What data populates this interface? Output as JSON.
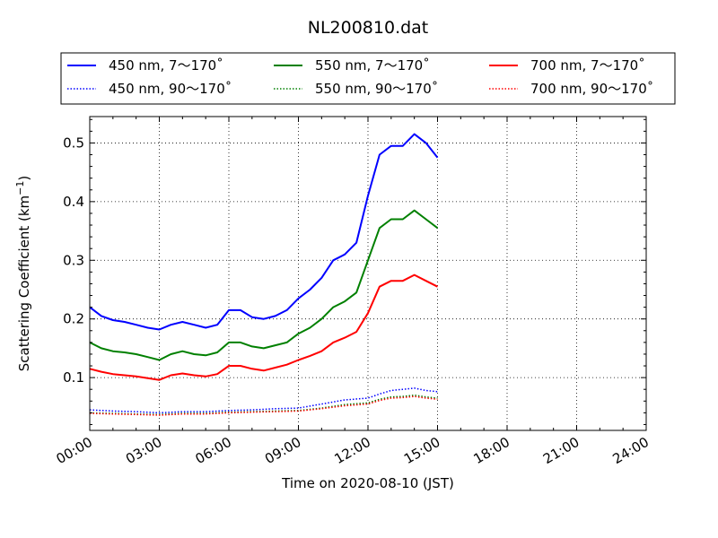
{
  "chart_data": {
    "type": "line",
    "title": "NL200810.dat",
    "xlabel": "Time on 2020-08-10 (JST)",
    "ylabel_main": "Scattering Coefficient (km",
    "ylabel_sup": "−1",
    "ylabel_close": ")",
    "xlim": [
      "00:00",
      "24:00"
    ],
    "ylim": [
      0.01,
      0.545
    ],
    "grid": true,
    "legend_position": "top",
    "x_ticks": [
      "00:00",
      "03:00",
      "06:00",
      "09:00",
      "12:00",
      "15:00",
      "18:00",
      "21:00",
      "24:00"
    ],
    "y_ticks": [
      "0.1",
      "0.2",
      "0.3",
      "0.4",
      "0.5"
    ],
    "series": [
      {
        "name": "450 nm, 7～170˚",
        "color": "#0000ff",
        "style": "solid",
        "x": [
          "00:00",
          "00:30",
          "01:00",
          "01:30",
          "02:00",
          "02:30",
          "03:00",
          "03:30",
          "04:00",
          "04:30",
          "05:00",
          "05:30",
          "06:00",
          "06:30",
          "07:00",
          "07:30",
          "08:00",
          "08:30",
          "09:00",
          "09:30",
          "10:00",
          "10:30",
          "11:00",
          "11:30",
          "12:00",
          "12:30",
          "13:00",
          "13:30",
          "14:00",
          "14:30",
          "15:00"
        ],
        "y": [
          0.22,
          0.205,
          0.198,
          0.195,
          0.19,
          0.185,
          0.182,
          0.19,
          0.195,
          0.19,
          0.185,
          0.19,
          0.215,
          0.215,
          0.203,
          0.2,
          0.205,
          0.215,
          0.235,
          0.25,
          0.27,
          0.3,
          0.31,
          0.33,
          0.41,
          0.48,
          0.495,
          0.495,
          0.515,
          0.5,
          0.475
        ]
      },
      {
        "name": "550 nm, 7～170˚",
        "color": "#008000",
        "style": "solid",
        "x": [
          "00:00",
          "00:30",
          "01:00",
          "01:30",
          "02:00",
          "02:30",
          "03:00",
          "03:30",
          "04:00",
          "04:30",
          "05:00",
          "05:30",
          "06:00",
          "06:30",
          "07:00",
          "07:30",
          "08:00",
          "08:30",
          "09:00",
          "09:30",
          "10:00",
          "10:30",
          "11:00",
          "11:30",
          "12:00",
          "12:30",
          "13:00",
          "13:30",
          "14:00",
          "14:30",
          "15:00"
        ],
        "y": [
          0.16,
          0.15,
          0.145,
          0.143,
          0.14,
          0.135,
          0.13,
          0.14,
          0.145,
          0.14,
          0.138,
          0.143,
          0.16,
          0.16,
          0.153,
          0.15,
          0.155,
          0.16,
          0.175,
          0.185,
          0.2,
          0.22,
          0.23,
          0.245,
          0.3,
          0.355,
          0.37,
          0.37,
          0.385,
          0.37,
          0.355
        ]
      },
      {
        "name": "700 nm, 7～170˚",
        "color": "#ff0000",
        "style": "solid",
        "x": [
          "00:00",
          "00:30",
          "01:00",
          "01:30",
          "02:00",
          "02:30",
          "03:00",
          "03:30",
          "04:00",
          "04:30",
          "05:00",
          "05:30",
          "06:00",
          "06:30",
          "07:00",
          "07:30",
          "08:00",
          "08:30",
          "09:00",
          "09:30",
          "10:00",
          "10:30",
          "11:00",
          "11:30",
          "12:00",
          "12:30",
          "13:00",
          "13:30",
          "14:00",
          "14:30",
          "15:00"
        ],
        "y": [
          0.115,
          0.11,
          0.106,
          0.104,
          0.102,
          0.099,
          0.096,
          0.104,
          0.107,
          0.104,
          0.102,
          0.106,
          0.12,
          0.12,
          0.115,
          0.112,
          0.117,
          0.122,
          0.13,
          0.137,
          0.145,
          0.16,
          0.168,
          0.178,
          0.21,
          0.255,
          0.265,
          0.265,
          0.275,
          0.265,
          0.255
        ]
      },
      {
        "name": "450 nm, 90～170˚",
        "color": "#0000ff",
        "style": "dotted",
        "x": [
          "00:00",
          "01:00",
          "02:00",
          "03:00",
          "04:00",
          "05:00",
          "06:00",
          "07:00",
          "08:00",
          "09:00",
          "10:00",
          "11:00",
          "12:00",
          "12:30",
          "13:00",
          "13:30",
          "14:00",
          "14:30",
          "15:00"
        ],
        "y": [
          0.045,
          0.043,
          0.042,
          0.04,
          0.042,
          0.042,
          0.044,
          0.045,
          0.047,
          0.048,
          0.055,
          0.062,
          0.065,
          0.072,
          0.078,
          0.08,
          0.082,
          0.078,
          0.076
        ]
      },
      {
        "name": "550 nm, 90～170˚",
        "color": "#008000",
        "style": "dotted",
        "x": [
          "00:00",
          "01:00",
          "02:00",
          "03:00",
          "04:00",
          "05:00",
          "06:00",
          "07:00",
          "08:00",
          "09:00",
          "10:00",
          "11:00",
          "12:00",
          "12:30",
          "13:00",
          "13:30",
          "14:00",
          "14:30",
          "15:00"
        ],
        "y": [
          0.04,
          0.039,
          0.038,
          0.037,
          0.039,
          0.039,
          0.041,
          0.042,
          0.043,
          0.044,
          0.048,
          0.054,
          0.057,
          0.063,
          0.067,
          0.068,
          0.07,
          0.067,
          0.065
        ]
      },
      {
        "name": "700 nm, 90～170˚",
        "color": "#ff0000",
        "style": "dotted",
        "x": [
          "00:00",
          "01:00",
          "02:00",
          "03:00",
          "04:00",
          "05:00",
          "06:00",
          "07:00",
          "08:00",
          "09:00",
          "10:00",
          "11:00",
          "12:00",
          "12:30",
          "13:00",
          "13:30",
          "14:00",
          "14:30",
          "15:00"
        ],
        "y": [
          0.039,
          0.038,
          0.037,
          0.036,
          0.038,
          0.038,
          0.04,
          0.041,
          0.042,
          0.043,
          0.047,
          0.052,
          0.055,
          0.061,
          0.065,
          0.066,
          0.068,
          0.065,
          0.063
        ]
      }
    ]
  }
}
